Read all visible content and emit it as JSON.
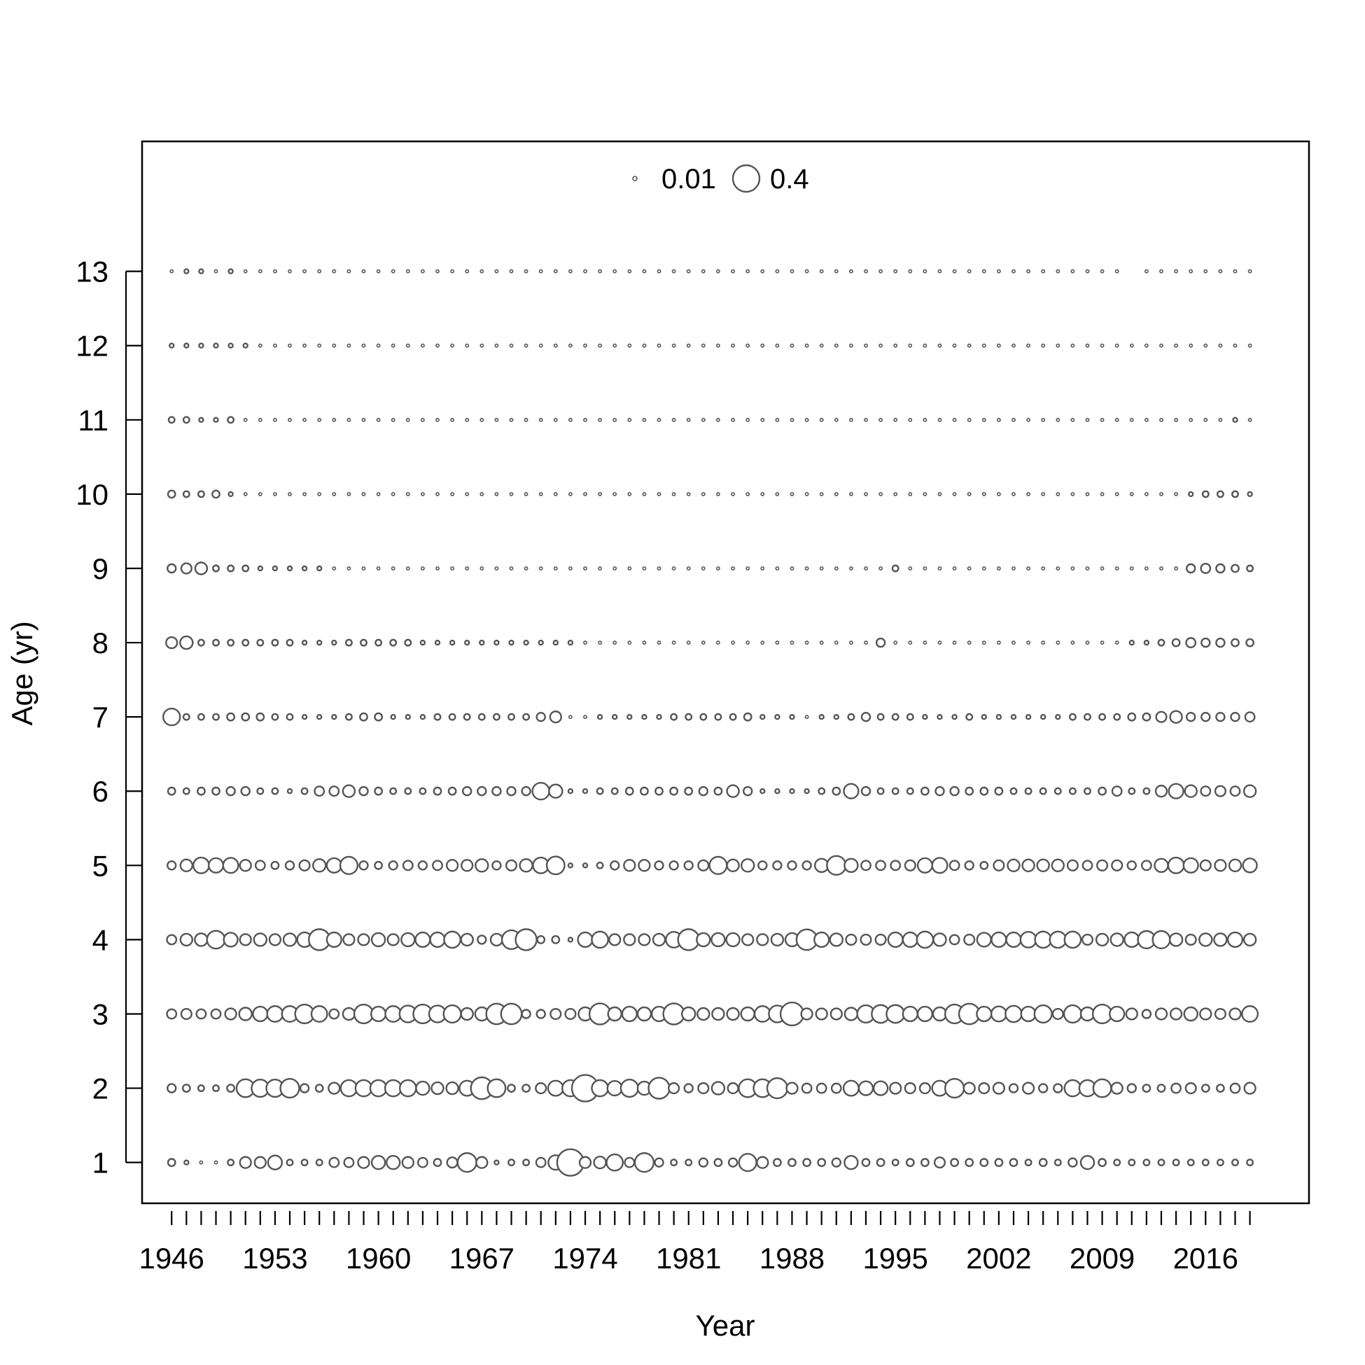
{
  "chart_data": {
    "type": "scatter",
    "subtype": "bubble",
    "title": "",
    "xlabel": "Year",
    "ylabel": "Age (yr)",
    "xlim": [
      1944,
      2023
    ],
    "ylim": [
      0.45,
      14.75
    ],
    "x_tick_labels": [
      "1946",
      "1953",
      "1960",
      "1967",
      "1974",
      "1981",
      "1988",
      "1995",
      "2002",
      "2009",
      "2016"
    ],
    "x_tick_values": [
      1946,
      1953,
      1960,
      1967,
      1974,
      1981,
      1988,
      1995,
      2002,
      2009,
      2016
    ],
    "minor_tick_years_from": 1946,
    "minor_tick_years_to": 2019,
    "y_tick_labels": [
      "1",
      "2",
      "3",
      "4",
      "5",
      "6",
      "7",
      "8",
      "9",
      "10",
      "11",
      "12",
      "13"
    ],
    "y_tick_values": [
      1,
      2,
      3,
      4,
      5,
      6,
      7,
      8,
      9,
      10,
      11,
      12,
      13
    ],
    "grid": false,
    "legend": {
      "placement": "top",
      "entries": [
        {
          "label": "0.01",
          "value": 0.01
        },
        {
          "label": "0.4",
          "value": 0.4
        }
      ]
    },
    "size_encoding": "circle area proportional to value; value 0.4 drawn at the legend's larger circle",
    "colors": {
      "stroke": "#555555",
      "fill": "#ffffff",
      "frame": "#000000"
    },
    "years": [
      1946,
      1947,
      1948,
      1949,
      1950,
      1951,
      1952,
      1953,
      1954,
      1955,
      1956,
      1957,
      1958,
      1959,
      1960,
      1961,
      1962,
      1963,
      1964,
      1965,
      1966,
      1967,
      1968,
      1969,
      1970,
      1971,
      1972,
      1973,
      1974,
      1975,
      1976,
      1977,
      1978,
      1979,
      1980,
      1981,
      1982,
      1983,
      1984,
      1985,
      1986,
      1987,
      1988,
      1989,
      1990,
      1991,
      1992,
      1993,
      1994,
      1995,
      1996,
      1997,
      1998,
      1999,
      2000,
      2001,
      2002,
      2003,
      2004,
      2005,
      2006,
      2007,
      2008,
      2009,
      2010,
      2011,
      2012,
      2013,
      2014,
      2015,
      2016,
      2017,
      2018,
      2019
    ],
    "series": [
      {
        "age": 1,
        "values": [
          0.03,
          0.01,
          0.005,
          0.005,
          0.02,
          0.07,
          0.07,
          0.11,
          0.02,
          0.02,
          0.02,
          0.05,
          0.05,
          0.07,
          0.1,
          0.1,
          0.07,
          0.05,
          0.03,
          0.06,
          0.2,
          0.07,
          0.01,
          0.02,
          0.02,
          0.05,
          0.12,
          0.4,
          0.07,
          0.08,
          0.15,
          0.05,
          0.2,
          0.04,
          0.02,
          0.02,
          0.04,
          0.03,
          0.04,
          0.17,
          0.07,
          0.03,
          0.03,
          0.03,
          0.03,
          0.04,
          0.1,
          0.03,
          0.03,
          0.02,
          0.03,
          0.03,
          0.06,
          0.03,
          0.03,
          0.03,
          0.03,
          0.03,
          0.02,
          0.03,
          0.02,
          0.04,
          0.1,
          0.03,
          0.02,
          0.02,
          0.02,
          0.02,
          0.02,
          0.02,
          0.02,
          0.02,
          0.02,
          0.02
        ]
      },
      {
        "age": 2,
        "values": [
          0.04,
          0.03,
          0.02,
          0.02,
          0.03,
          0.18,
          0.17,
          0.17,
          0.2,
          0.04,
          0.03,
          0.07,
          0.15,
          0.15,
          0.15,
          0.15,
          0.15,
          0.1,
          0.08,
          0.08,
          0.13,
          0.27,
          0.18,
          0.03,
          0.03,
          0.06,
          0.13,
          0.15,
          0.4,
          0.15,
          0.12,
          0.17,
          0.1,
          0.25,
          0.06,
          0.04,
          0.06,
          0.09,
          0.06,
          0.18,
          0.18,
          0.23,
          0.07,
          0.05,
          0.05,
          0.05,
          0.13,
          0.11,
          0.11,
          0.07,
          0.06,
          0.06,
          0.13,
          0.2,
          0.07,
          0.06,
          0.07,
          0.04,
          0.07,
          0.04,
          0.04,
          0.15,
          0.15,
          0.18,
          0.07,
          0.04,
          0.03,
          0.03,
          0.05,
          0.06,
          0.03,
          0.03,
          0.05,
          0.07
        ]
      },
      {
        "age": 3,
        "values": [
          0.05,
          0.06,
          0.05,
          0.05,
          0.07,
          0.09,
          0.12,
          0.14,
          0.14,
          0.2,
          0.14,
          0.05,
          0.08,
          0.2,
          0.12,
          0.14,
          0.16,
          0.2,
          0.16,
          0.17,
          0.08,
          0.1,
          0.24,
          0.24,
          0.04,
          0.04,
          0.06,
          0.06,
          0.1,
          0.25,
          0.1,
          0.12,
          0.1,
          0.12,
          0.25,
          0.1,
          0.08,
          0.08,
          0.08,
          0.1,
          0.14,
          0.16,
          0.3,
          0.07,
          0.07,
          0.07,
          0.09,
          0.17,
          0.18,
          0.18,
          0.12,
          0.12,
          0.1,
          0.2,
          0.24,
          0.12,
          0.13,
          0.15,
          0.12,
          0.17,
          0.06,
          0.17,
          0.1,
          0.2,
          0.12,
          0.07,
          0.04,
          0.07,
          0.07,
          0.1,
          0.07,
          0.06,
          0.07,
          0.14
        ]
      },
      {
        "age": 4,
        "values": [
          0.05,
          0.08,
          0.09,
          0.18,
          0.11,
          0.07,
          0.09,
          0.07,
          0.09,
          0.12,
          0.25,
          0.12,
          0.07,
          0.07,
          0.1,
          0.07,
          0.1,
          0.12,
          0.12,
          0.15,
          0.08,
          0.04,
          0.08,
          0.2,
          0.25,
          0.03,
          0.03,
          0.01,
          0.12,
          0.15,
          0.07,
          0.07,
          0.07,
          0.08,
          0.14,
          0.25,
          0.1,
          0.1,
          0.1,
          0.07,
          0.07,
          0.08,
          0.1,
          0.24,
          0.12,
          0.09,
          0.06,
          0.06,
          0.06,
          0.12,
          0.12,
          0.15,
          0.09,
          0.05,
          0.06,
          0.11,
          0.12,
          0.12,
          0.14,
          0.15,
          0.15,
          0.15,
          0.06,
          0.08,
          0.09,
          0.12,
          0.17,
          0.17,
          0.09,
          0.06,
          0.09,
          0.09,
          0.12,
          0.08
        ]
      },
      {
        "age": 5,
        "values": [
          0.04,
          0.08,
          0.14,
          0.12,
          0.13,
          0.07,
          0.05,
          0.03,
          0.04,
          0.06,
          0.09,
          0.12,
          0.17,
          0.04,
          0.03,
          0.04,
          0.05,
          0.04,
          0.05,
          0.07,
          0.07,
          0.09,
          0.04,
          0.06,
          0.09,
          0.14,
          0.18,
          0.01,
          0.01,
          0.02,
          0.04,
          0.07,
          0.07,
          0.04,
          0.04,
          0.04,
          0.06,
          0.17,
          0.08,
          0.09,
          0.04,
          0.04,
          0.04,
          0.04,
          0.1,
          0.2,
          0.1,
          0.05,
          0.05,
          0.05,
          0.06,
          0.12,
          0.13,
          0.05,
          0.04,
          0.03,
          0.06,
          0.08,
          0.08,
          0.08,
          0.08,
          0.06,
          0.05,
          0.06,
          0.06,
          0.04,
          0.05,
          0.1,
          0.14,
          0.12,
          0.06,
          0.07,
          0.08,
          0.11
        ]
      },
      {
        "age": 6,
        "values": [
          0.03,
          0.02,
          0.03,
          0.03,
          0.04,
          0.04,
          0.02,
          0.02,
          0.01,
          0.02,
          0.05,
          0.05,
          0.08,
          0.04,
          0.03,
          0.02,
          0.02,
          0.02,
          0.03,
          0.03,
          0.04,
          0.04,
          0.04,
          0.04,
          0.04,
          0.16,
          0.1,
          0.01,
          0.01,
          0.02,
          0.02,
          0.03,
          0.03,
          0.03,
          0.03,
          0.03,
          0.04,
          0.03,
          0.08,
          0.04,
          0.01,
          0.01,
          0.01,
          0.01,
          0.02,
          0.03,
          0.12,
          0.04,
          0.02,
          0.02,
          0.02,
          0.03,
          0.04,
          0.04,
          0.03,
          0.03,
          0.03,
          0.02,
          0.02,
          0.02,
          0.02,
          0.02,
          0.02,
          0.03,
          0.05,
          0.02,
          0.02,
          0.07,
          0.12,
          0.08,
          0.05,
          0.06,
          0.05,
          0.08
        ]
      },
      {
        "age": 7,
        "values": [
          0.16,
          0.02,
          0.02,
          0.02,
          0.03,
          0.03,
          0.03,
          0.02,
          0.02,
          0.01,
          0.01,
          0.01,
          0.02,
          0.03,
          0.03,
          0.01,
          0.01,
          0.01,
          0.02,
          0.02,
          0.02,
          0.02,
          0.02,
          0.02,
          0.02,
          0.04,
          0.07,
          0.005,
          0.005,
          0.01,
          0.01,
          0.01,
          0.01,
          0.01,
          0.02,
          0.02,
          0.02,
          0.02,
          0.02,
          0.03,
          0.01,
          0.01,
          0.01,
          0.005,
          0.01,
          0.01,
          0.02,
          0.04,
          0.02,
          0.02,
          0.02,
          0.01,
          0.01,
          0.01,
          0.02,
          0.01,
          0.01,
          0.01,
          0.01,
          0.01,
          0.01,
          0.02,
          0.02,
          0.02,
          0.02,
          0.03,
          0.03,
          0.06,
          0.08,
          0.04,
          0.04,
          0.04,
          0.04,
          0.05
        ]
      },
      {
        "age": 8,
        "values": [
          0.07,
          0.09,
          0.02,
          0.02,
          0.02,
          0.02,
          0.02,
          0.02,
          0.02,
          0.01,
          0.01,
          0.01,
          0.02,
          0.02,
          0.02,
          0.02,
          0.02,
          0.01,
          0.01,
          0.01,
          0.01,
          0.01,
          0.01,
          0.01,
          0.01,
          0.01,
          0.01,
          0.01,
          0.005,
          0.005,
          0.005,
          0.005,
          0.005,
          0.005,
          0.005,
          0.005,
          0.005,
          0.005,
          0.005,
          0.005,
          0.005,
          0.005,
          0.005,
          0.005,
          0.005,
          0.005,
          0.005,
          0.005,
          0.04,
          0.005,
          0.005,
          0.005,
          0.005,
          0.005,
          0.005,
          0.005,
          0.005,
          0.005,
          0.005,
          0.005,
          0.005,
          0.005,
          0.005,
          0.005,
          0.005,
          0.01,
          0.01,
          0.02,
          0.03,
          0.05,
          0.04,
          0.04,
          0.03,
          0.03
        ]
      },
      {
        "age": 9,
        "values": [
          0.04,
          0.06,
          0.08,
          0.02,
          0.02,
          0.02,
          0.01,
          0.01,
          0.01,
          0.01,
          0.01,
          0.005,
          0.005,
          0.005,
          0.005,
          0.005,
          0.005,
          0.005,
          0.005,
          0.005,
          0.005,
          0.005,
          0.005,
          0.005,
          0.005,
          0.005,
          0.005,
          0.005,
          0.005,
          0.005,
          0.005,
          0.005,
          0.005,
          0.005,
          0.005,
          0.005,
          0.005,
          0.005,
          0.005,
          0.005,
          0.005,
          0.005,
          0.005,
          0.005,
          0.005,
          0.005,
          0.005,
          0.005,
          0.005,
          0.02,
          0.005,
          0.005,
          0.005,
          0.005,
          0.005,
          0.005,
          0.005,
          0.005,
          0.005,
          0.005,
          0.005,
          0.005,
          0.005,
          0.005,
          0.005,
          0.005,
          0.005,
          0.005,
          0.005,
          0.04,
          0.05,
          0.04,
          0.03,
          0.02
        ]
      },
      {
        "age": 10,
        "values": [
          0.03,
          0.02,
          0.02,
          0.03,
          0.01,
          0.005,
          0.005,
          0.005,
          0.005,
          0.005,
          0.005,
          0.005,
          0.005,
          0.005,
          0.005,
          0.005,
          0.005,
          0.005,
          0.005,
          0.005,
          0.005,
          0.005,
          0.005,
          0.005,
          0.005,
          0.005,
          0.005,
          0.005,
          0.005,
          0.005,
          0.005,
          0.005,
          0.005,
          0.005,
          0.005,
          0.005,
          0.005,
          0.005,
          0.005,
          0.005,
          0.005,
          0.005,
          0.005,
          0.005,
          0.005,
          0.005,
          0.005,
          0.005,
          0.005,
          0.005,
          0.005,
          0.005,
          0.005,
          0.005,
          0.005,
          0.005,
          0.005,
          0.005,
          0.005,
          0.005,
          0.005,
          0.005,
          0.005,
          0.005,
          0.005,
          0.005,
          0.005,
          0.005,
          0.005,
          0.01,
          0.02,
          0.02,
          0.02,
          0.01
        ]
      },
      {
        "age": 11,
        "values": [
          0.02,
          0.02,
          0.01,
          0.01,
          0.02,
          0.005,
          0.005,
          0.005,
          0.005,
          0.005,
          0.005,
          0.005,
          0.005,
          0.005,
          0.005,
          0.005,
          0.005,
          0.005,
          0.005,
          0.005,
          0.005,
          0.005,
          0.005,
          0.005,
          0.005,
          0.005,
          0.005,
          0.005,
          0.005,
          0.005,
          0.005,
          0.005,
          0.005,
          0.005,
          0.005,
          0.005,
          0.005,
          0.005,
          0.005,
          0.005,
          0.005,
          0.005,
          0.005,
          0.005,
          0.005,
          0.005,
          0.005,
          0.005,
          0.005,
          0.005,
          0.005,
          0.005,
          0.005,
          0.005,
          0.005,
          0.005,
          0.005,
          0.005,
          0.005,
          0.005,
          0.005,
          0.005,
          0.005,
          0.005,
          0.005,
          0.005,
          0.005,
          0.005,
          0.005,
          0.005,
          0.005,
          0.005,
          0.01,
          0.005
        ]
      },
      {
        "age": 12,
        "values": [
          0.01,
          0.01,
          0.01,
          0.01,
          0.01,
          0.01,
          0.005,
          0.005,
          0.005,
          0.005,
          0.005,
          0.005,
          0.005,
          0.005,
          0.005,
          0.005,
          0.005,
          0.005,
          0.005,
          0.005,
          0.005,
          0.005,
          0.005,
          0.005,
          0.005,
          0.005,
          0.005,
          0.005,
          0.005,
          0.005,
          0.005,
          0.005,
          0.005,
          0.005,
          0.005,
          0.005,
          0.005,
          0.005,
          0.005,
          0.005,
          0.005,
          0.005,
          0.005,
          0.005,
          0.005,
          0.005,
          0.005,
          0.005,
          0.005,
          0.005,
          0.005,
          0.005,
          0.005,
          0.005,
          0.005,
          0.005,
          0.005,
          0.005,
          0.005,
          0.005,
          0.005,
          0.005,
          0.005,
          0.005,
          0.005,
          0.005,
          0.005,
          0.005,
          0.005,
          0.005,
          0.005,
          0.005,
          0.005,
          0.005
        ]
      },
      {
        "age": 13,
        "values": [
          0.005,
          0.01,
          0.01,
          0.005,
          0.01,
          0.005,
          0.005,
          0.005,
          0.005,
          0.005,
          0.005,
          0.005,
          0.005,
          0.005,
          0.005,
          0.005,
          0.005,
          0.005,
          0.005,
          0.005,
          0.005,
          0.005,
          0.005,
          0.005,
          0.005,
          0.005,
          0.005,
          0.005,
          0.005,
          0.005,
          0.005,
          0.005,
          0.005,
          0.005,
          0.005,
          0.005,
          0.005,
          0.005,
          0.005,
          0.005,
          0.005,
          0.005,
          0.005,
          0.005,
          0.005,
          0.005,
          0.005,
          0.005,
          0.005,
          0.005,
          0.005,
          0.005,
          0.005,
          0.005,
          0.005,
          0.005,
          0.005,
          0.005,
          0.005,
          0.005,
          0.005,
          0.005,
          0.005,
          0.005,
          0.005,
          null,
          0.005,
          0.005,
          0.005,
          0.005,
          0.005,
          0.005,
          0.005,
          0.005
        ]
      }
    ]
  }
}
